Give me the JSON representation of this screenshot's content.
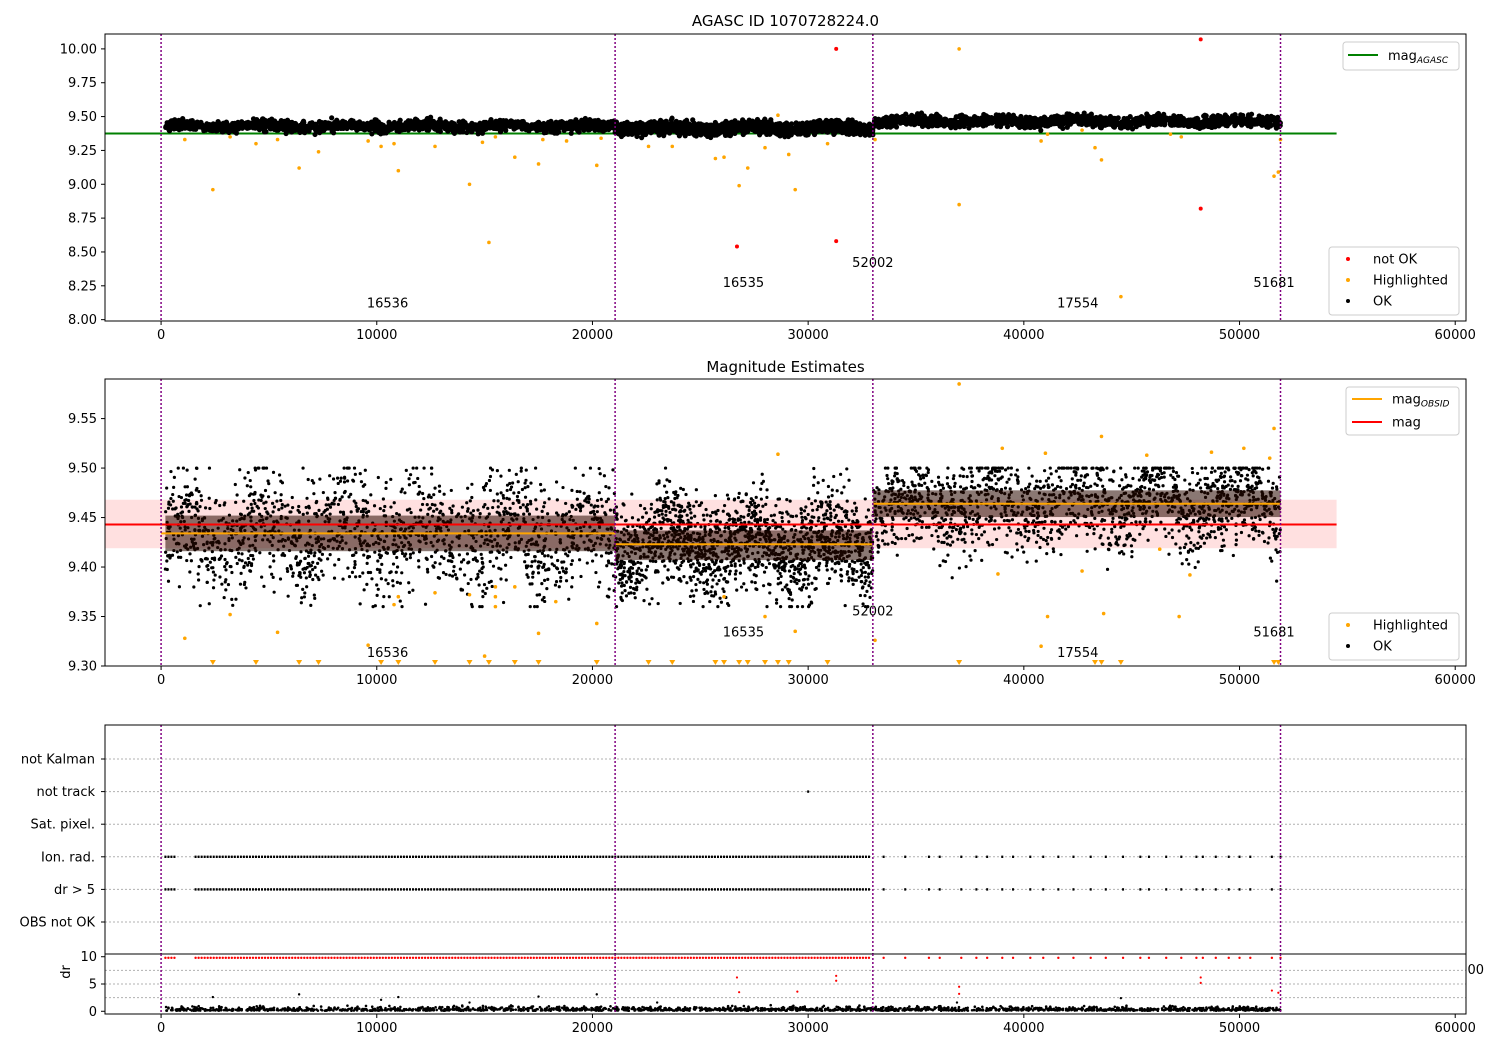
{
  "chart_data": [
    {
      "id": "agasc",
      "type": "scatter",
      "title": "AGASC ID 1070728224.0",
      "xlabel": "",
      "ylabel": "",
      "xlim": [
        -2600,
        60500
      ],
      "ylim": [
        7.99,
        10.11
      ],
      "xticks": [
        0,
        10000,
        20000,
        30000,
        40000,
        50000,
        60000
      ],
      "xtick_labels": [
        "0",
        "10000",
        "20000",
        "30000",
        "40000",
        "50000",
        "60000"
      ],
      "yticks": [
        8.0,
        8.25,
        8.5,
        8.75,
        9.0,
        9.25,
        9.5,
        9.75,
        10.0
      ],
      "ytick_labels": [
        "8.00",
        "8.25",
        "8.50",
        "8.75",
        "9.00",
        "9.25",
        "9.50",
        "9.75",
        "10.00"
      ],
      "legend_lines": {
        "position": "top-right",
        "entries": [
          {
            "label_main": "mag",
            "label_sub": "AGASC",
            "color": "#008000"
          }
        ]
      },
      "legend_points": {
        "position": "bottom-right",
        "entries": [
          {
            "label": "not OK",
            "color": "#ff0000"
          },
          {
            "label": "Highlighted",
            "color": "#ffa500"
          },
          {
            "label": "OK",
            "color": "#000000"
          }
        ]
      },
      "hlines": [
        {
          "name": "mag_AGASC",
          "y": 9.375,
          "x": [
            -2600,
            54500
          ],
          "color": "#008000"
        }
      ],
      "obsid_boundaries": [
        0,
        21050,
        33000,
        51900
      ],
      "obsid_labels": [
        {
          "text": "16536",
          "x": 10500,
          "y": 8.09
        },
        {
          "text": "16535",
          "x": 27000,
          "y": 8.24
        },
        {
          "text": "52002",
          "x": 33000,
          "y": 8.39
        },
        {
          "text": "17554",
          "x": 42500,
          "y": 8.09
        },
        {
          "text": "51681",
          "x": 51600,
          "y": 8.24
        }
      ],
      "ok_band": [
        {
          "x": [
            200,
            21050
          ],
          "y": 9.43,
          "spread": 0.04
        },
        {
          "x": [
            21050,
            33000
          ],
          "y": 9.415,
          "spread": 0.045
        },
        {
          "x": [
            33000,
            51900
          ],
          "y": 9.465,
          "spread": 0.04
        }
      ],
      "points": {
        "not_ok": [
          [
            31300,
            10.0
          ],
          [
            26700,
            8.54
          ],
          [
            31300,
            8.58
          ],
          [
            48200,
            10.07
          ],
          [
            48200,
            8.82
          ]
        ],
        "highlighted": [
          [
            1100,
            9.33
          ],
          [
            2400,
            8.96
          ],
          [
            3200,
            9.35
          ],
          [
            4400,
            9.3
          ],
          [
            5400,
            9.33
          ],
          [
            6400,
            9.12
          ],
          [
            7300,
            9.24
          ],
          [
            9600,
            9.32
          ],
          [
            10200,
            9.28
          ],
          [
            10800,
            9.3
          ],
          [
            11000,
            9.1
          ],
          [
            12700,
            9.28
          ],
          [
            14300,
            9.0
          ],
          [
            14900,
            9.31
          ],
          [
            15200,
            8.57
          ],
          [
            15500,
            9.35
          ],
          [
            16400,
            9.2
          ],
          [
            17500,
            9.15
          ],
          [
            17700,
            9.33
          ],
          [
            18800,
            9.32
          ],
          [
            20200,
            9.14
          ],
          [
            20400,
            9.34
          ],
          [
            22600,
            9.28
          ],
          [
            23700,
            9.28
          ],
          [
            25700,
            9.19
          ],
          [
            26100,
            9.2
          ],
          [
            26800,
            8.99
          ],
          [
            27200,
            9.12
          ],
          [
            28000,
            9.27
          ],
          [
            28600,
            9.51
          ],
          [
            29100,
            9.22
          ],
          [
            29400,
            8.96
          ],
          [
            30900,
            9.3
          ],
          [
            37000,
            10.0
          ],
          [
            37000,
            8.85
          ],
          [
            33100,
            9.33
          ],
          [
            40800,
            9.32
          ],
          [
            41100,
            9.37
          ],
          [
            42700,
            9.4
          ],
          [
            43300,
            9.27
          ],
          [
            43600,
            9.18
          ],
          [
            44500,
            8.17
          ],
          [
            46800,
            9.37
          ],
          [
            47300,
            9.35
          ],
          [
            51600,
            9.06
          ],
          [
            51800,
            9.09
          ],
          [
            51900,
            9.33
          ]
        ]
      }
    },
    {
      "id": "estimates",
      "type": "scatter",
      "title": "Magnitude Estimates",
      "xlabel": "",
      "ylabel": "",
      "xlim": [
        -2600,
        60500
      ],
      "ylim": [
        9.3,
        9.59
      ],
      "xticks": [
        0,
        10000,
        20000,
        30000,
        40000,
        50000,
        60000
      ],
      "xtick_labels": [
        "0",
        "10000",
        "20000",
        "30000",
        "40000",
        "50000",
        "60000"
      ],
      "yticks": [
        9.3,
        9.35,
        9.4,
        9.45,
        9.5,
        9.55
      ],
      "ytick_labels": [
        "9.30",
        "9.35",
        "9.40",
        "9.45",
        "9.50",
        "9.55"
      ],
      "legend_lines": {
        "position": "top-right",
        "entries": [
          {
            "label_main": "mag",
            "label_sub": "OBSID",
            "color": "#ffa500"
          },
          {
            "label_main": "mag",
            "label_sub": "",
            "color": "#ff0000"
          }
        ]
      },
      "legend_points": {
        "position": "bottom-right",
        "entries": [
          {
            "label": "Highlighted",
            "color": "#ffa500"
          },
          {
            "label": "OK",
            "color": "#000000"
          }
        ]
      },
      "mag_band": {
        "y": 9.443,
        "low": 9.419,
        "high": 9.468,
        "x": [
          -2600,
          54500
        ],
        "color": "#ff0000"
      },
      "obsid_means": [
        {
          "x": [
            0,
            21050
          ],
          "y": 9.434
        },
        {
          "x": [
            21050,
            33000
          ],
          "y": 9.423
        },
        {
          "x": [
            33000,
            51900
          ],
          "y": 9.464
        }
      ],
      "obsid_boundaries": [
        0,
        21050,
        33000,
        51900
      ],
      "obsid_labels": [
        {
          "text": "16536",
          "x": 10500,
          "y": 9.309
        },
        {
          "text": "16535",
          "x": 27000,
          "y": 9.33
        },
        {
          "text": "52002",
          "x": 33000,
          "y": 9.351
        },
        {
          "text": "17554",
          "x": 42500,
          "y": 9.309
        },
        {
          "text": "51681",
          "x": 51600,
          "y": 9.33
        }
      ],
      "ok_band": [
        {
          "x": [
            200,
            21050
          ],
          "y": 9.434,
          "spread": 0.06
        },
        {
          "x": [
            21050,
            33000
          ],
          "y": 9.422,
          "spread": 0.05
        },
        {
          "x": [
            33000,
            51900
          ],
          "y": 9.464,
          "spread": 0.045
        }
      ],
      "points": {
        "highlighted": [
          [
            1100,
            9.328
          ],
          [
            3200,
            9.352
          ],
          [
            5400,
            9.334
          ],
          [
            9600,
            9.321
          ],
          [
            10800,
            9.362
          ],
          [
            11000,
            9.37
          ],
          [
            12700,
            9.374
          ],
          [
            14300,
            9.372
          ],
          [
            15500,
            9.36
          ],
          [
            15500,
            9.37
          ],
          [
            15500,
            9.38
          ],
          [
            15000,
            9.31
          ],
          [
            16400,
            9.38
          ],
          [
            17500,
            9.333
          ],
          [
            18300,
            9.365
          ],
          [
            20200,
            9.343
          ],
          [
            26100,
            9.37
          ],
          [
            28000,
            9.35
          ],
          [
            28600,
            9.514
          ],
          [
            29400,
            9.335
          ],
          [
            37000,
            9.585
          ],
          [
            38800,
            9.393
          ],
          [
            40800,
            9.32
          ],
          [
            41100,
            9.35
          ],
          [
            42700,
            9.396
          ],
          [
            43700,
            9.353
          ],
          [
            46300,
            9.418
          ],
          [
            47200,
            9.35
          ],
          [
            47700,
            9.392
          ],
          [
            51600,
            9.54
          ],
          [
            33100,
            9.326
          ],
          [
            39000,
            9.52
          ],
          [
            41000,
            9.515
          ],
          [
            43600,
            9.532
          ],
          [
            45700,
            9.513
          ],
          [
            48700,
            9.516
          ],
          [
            50200,
            9.52
          ],
          [
            51400,
            9.51
          ]
        ],
        "highlighted_clipped_x": [
          2400,
          4400,
          6400,
          7300,
          10200,
          11000,
          12700,
          14300,
          15200,
          16400,
          17500,
          20200,
          22600,
          23700,
          25700,
          26100,
          26800,
          27200,
          28000,
          28600,
          29100,
          30900,
          37000,
          43300,
          43600,
          44500,
          51600,
          51800
        ]
      }
    },
    {
      "id": "flags",
      "type": "scatter",
      "title": "",
      "xlabel": "",
      "ylabel": "",
      "xlim": [
        -2600,
        60500
      ],
      "categories": [
        "not Kalman",
        "not track",
        "Sat. pixel.",
        "Ion. rad.",
        "dr > 5",
        "OBS not OK"
      ],
      "xtick_partial": "00",
      "obsid_boundaries": [
        0,
        21050,
        33000,
        51900
      ],
      "flag_rows": {
        "Ion. rad.": [
          [
            200,
            650
          ],
          [
            1600,
            32900
          ]
        ],
        "dr > 5": [
          [
            200,
            650
          ],
          [
            1600,
            32900
          ]
        ],
        "not track": [
          [
            30000,
            30100
          ]
        ]
      },
      "flag_sparse_x": [
        33500,
        34500,
        35600,
        36100,
        37100,
        37800,
        38300,
        39000,
        39500,
        40300,
        40900,
        41600,
        42300,
        43100,
        43800,
        44600,
        45400,
        45800,
        46600,
        47300,
        48000,
        48300,
        48900,
        49500,
        50000,
        50500,
        51500,
        51900
      ]
    },
    {
      "id": "dr",
      "type": "scatter",
      "title": "",
      "xlabel": "",
      "ylabel": "dr",
      "xlim": [
        -2600,
        60500
      ],
      "ylim": [
        -0.5,
        10.5
      ],
      "xticks": [
        0,
        10000,
        20000,
        30000,
        40000,
        50000,
        60000
      ],
      "xtick_labels": [
        "0",
        "10000",
        "20000",
        "30000",
        "40000",
        "50000",
        "60000"
      ],
      "yticks": [
        0,
        5,
        10
      ],
      "ytick_labels": [
        "0",
        "5",
        "10"
      ],
      "obsid_boundaries": [
        0,
        21050,
        33000,
        51900
      ],
      "points": {
        "not_ok_high_y": 9.8,
        "not_ok_extra": [
          [
            26700,
            6.2
          ],
          [
            26800,
            3.5
          ],
          [
            29500,
            3.6
          ],
          [
            31300,
            6.5
          ],
          [
            31300,
            5.6
          ],
          [
            37000,
            4.5
          ],
          [
            37000,
            3.2
          ],
          [
            48200,
            6.2
          ],
          [
            48200,
            5.2
          ],
          [
            51500,
            3.8
          ],
          [
            51800,
            3.4
          ]
        ],
        "ok_extra": [
          [
            2400,
            2.6
          ],
          [
            6400,
            3.1
          ],
          [
            10200,
            2.1
          ],
          [
            11000,
            2.6
          ],
          [
            14300,
            1.6
          ],
          [
            17500,
            2.7
          ],
          [
            20200,
            3.1
          ],
          [
            44500,
            2.4
          ],
          [
            36900,
            1.6
          ],
          [
            23000,
            1.6
          ]
        ]
      }
    }
  ]
}
